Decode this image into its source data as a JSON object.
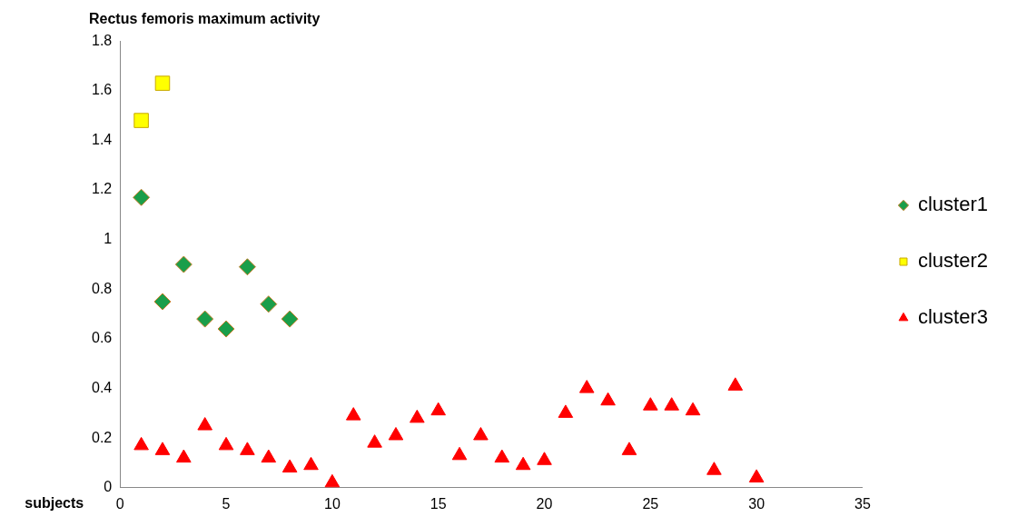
{
  "chart_data": {
    "type": "scatter",
    "title": "Rectus femoris maximum activity",
    "xlabel": "subjects",
    "xlim": [
      0,
      35
    ],
    "xticks": [
      0,
      5,
      10,
      15,
      20,
      25,
      30,
      35
    ],
    "ylim": [
      0,
      1.8
    ],
    "yticks": [
      0,
      0.2,
      0.4,
      0.6,
      0.8,
      1,
      1.2,
      1.4,
      1.6,
      1.8
    ],
    "grid": false,
    "legend": "right",
    "series": [
      {
        "name": "cluster1",
        "color": "#1a9e4a",
        "marker": "diamond",
        "x": [
          1,
          2,
          3,
          4,
          5,
          6,
          7,
          8
        ],
        "values": [
          1.17,
          0.75,
          0.9,
          0.68,
          0.64,
          0.89,
          0.74,
          0.68
        ]
      },
      {
        "name": "cluster2",
        "color": "#ffff00",
        "marker": "square",
        "x": [
          1,
          2
        ],
        "values": [
          1.48,
          1.63
        ]
      },
      {
        "name": "cluster3",
        "color": "#ff0000",
        "marker": "triangle",
        "x": [
          1,
          2,
          3,
          4,
          5,
          6,
          7,
          8,
          9,
          10,
          11,
          12,
          13,
          14,
          15,
          16,
          17,
          18,
          19,
          20,
          21,
          22,
          23,
          24,
          25,
          26,
          27,
          28,
          29,
          30
        ],
        "values": [
          0.17,
          0.15,
          0.12,
          0.25,
          0.17,
          0.15,
          0.12,
          0.08,
          0.09,
          0.02,
          0.29,
          0.18,
          0.21,
          0.28,
          0.31,
          0.13,
          0.21,
          0.12,
          0.09,
          0.11,
          0.3,
          0.4,
          0.35,
          0.15,
          0.33,
          0.33,
          0.31,
          0.07,
          0.41,
          0.04
        ]
      }
    ]
  }
}
